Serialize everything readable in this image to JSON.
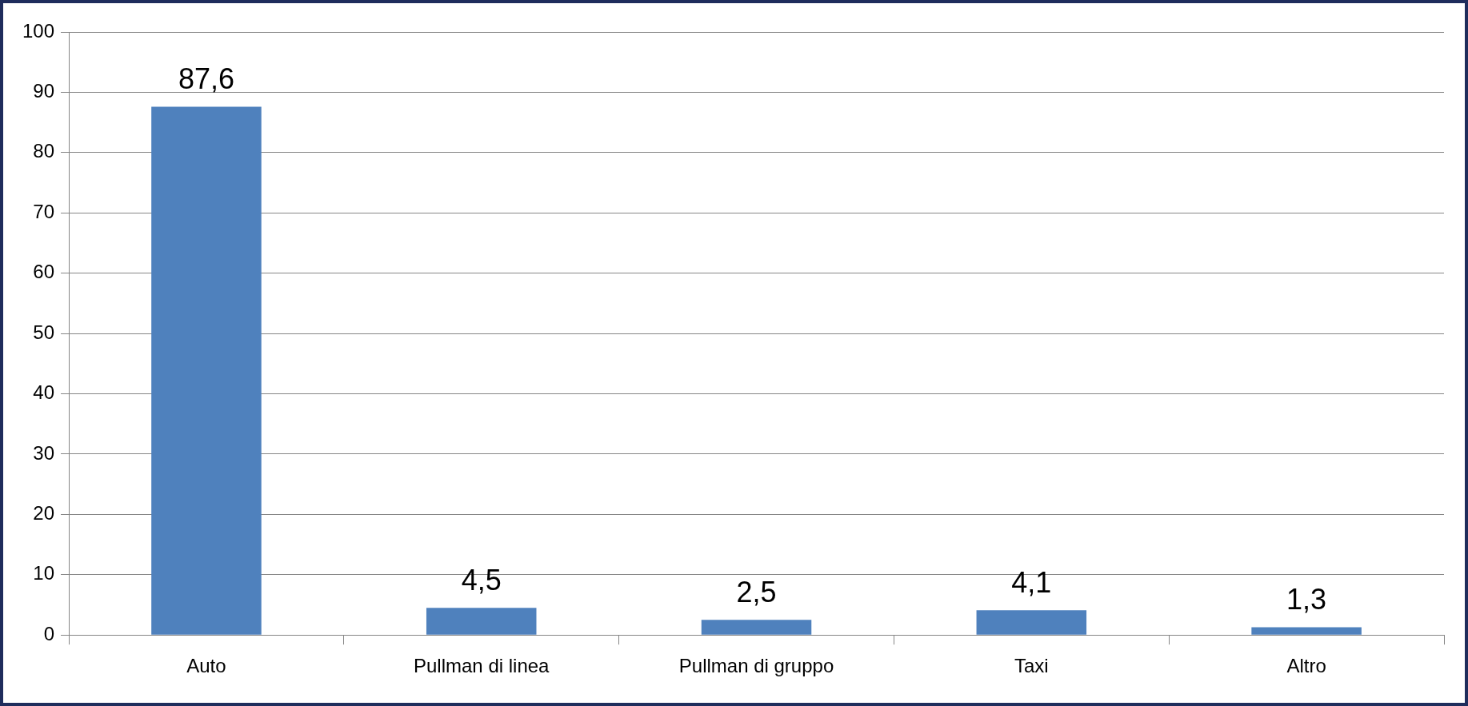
{
  "chart_data": {
    "type": "bar",
    "categories": [
      "Auto",
      "Pullman di linea",
      "Pullman di gruppo",
      "Taxi",
      "Altro"
    ],
    "values": [
      87.6,
      4.5,
      2.5,
      4.1,
      1.3
    ],
    "value_labels": [
      "87,6",
      "4,5",
      "2,5",
      "4,1",
      "1,3"
    ],
    "color": "#4f81bd",
    "ylim": [
      0,
      100
    ],
    "yticks": [
      0,
      10,
      20,
      30,
      40,
      50,
      60,
      70,
      80,
      90,
      100
    ],
    "grid": "y",
    "legend": false
  }
}
